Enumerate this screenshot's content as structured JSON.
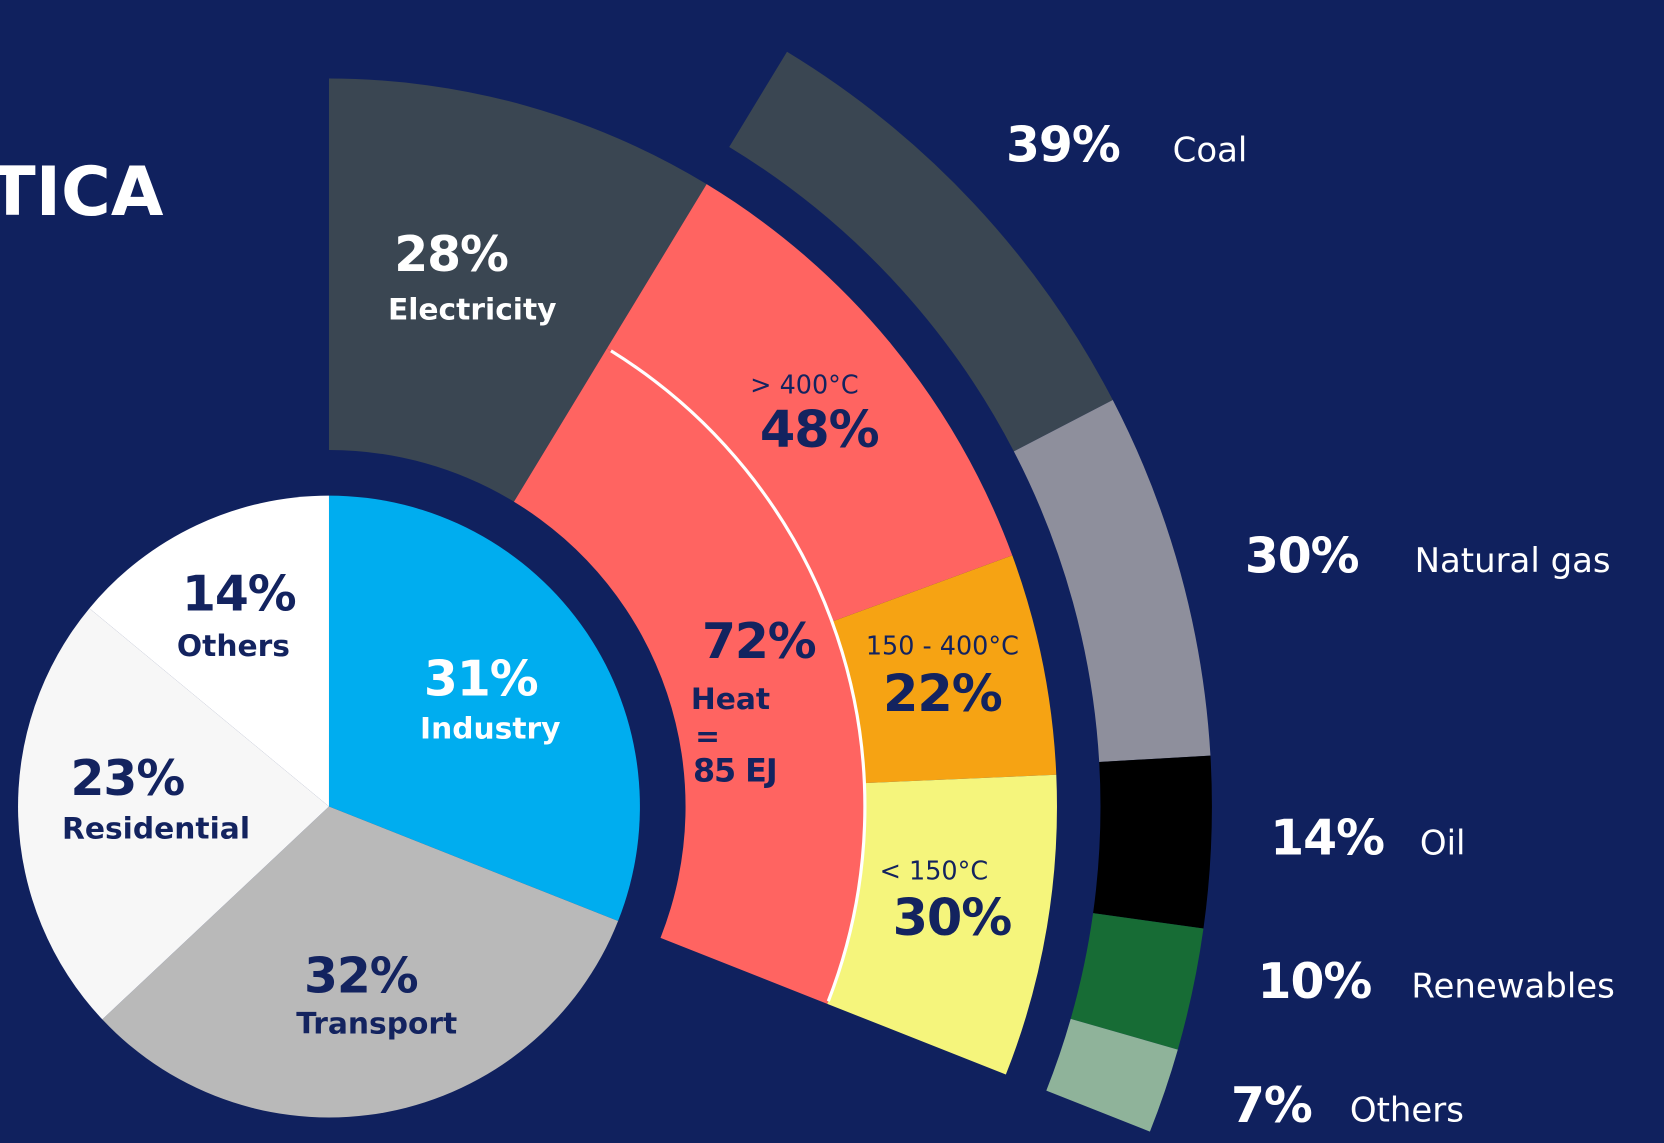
{
  "chart_data": [
    {
      "type": "pie",
      "title": "TICA",
      "categories": [
        "Industry",
        "Transport",
        "Residential",
        "Others"
      ],
      "values": [
        31,
        32,
        23,
        14
      ],
      "value_labels": [
        "31%",
        "32%",
        "23%",
        "14%"
      ],
      "colors": [
        "#00adef",
        "#b9b9b9",
        "#f7f7f7",
        "#ffffff"
      ]
    },
    {
      "type": "ring",
      "categories": [
        "Electricity",
        "Heat"
      ],
      "values": [
        28,
        72
      ],
      "value_labels": [
        "28%",
        "72%"
      ],
      "colors": [
        "#3a4652",
        "#ff6461"
      ],
      "annotations": [
        "=",
        "85 EJ"
      ]
    },
    {
      "type": "ring",
      "categories": [
        "> 400°C",
        "150 - 400°C",
        "< 150°C"
      ],
      "values": [
        48,
        22,
        30
      ],
      "value_labels": [
        "48%",
        "22%",
        "30%"
      ],
      "colors": [
        "#ff6461",
        "#f6a313",
        "#f5f57c"
      ]
    },
    {
      "type": "ring",
      "categories": [
        "Coal",
        "Natural gas",
        "Oil",
        "Renewables",
        "Others"
      ],
      "values": [
        39,
        30,
        14,
        10,
        7
      ],
      "value_labels": [
        "39%",
        "30%",
        "14%",
        "10%",
        "7%"
      ],
      "colors": [
        "#3a4652",
        "#8e8f9c",
        "#000000",
        "#176c35",
        "#8fb39a"
      ]
    }
  ]
}
